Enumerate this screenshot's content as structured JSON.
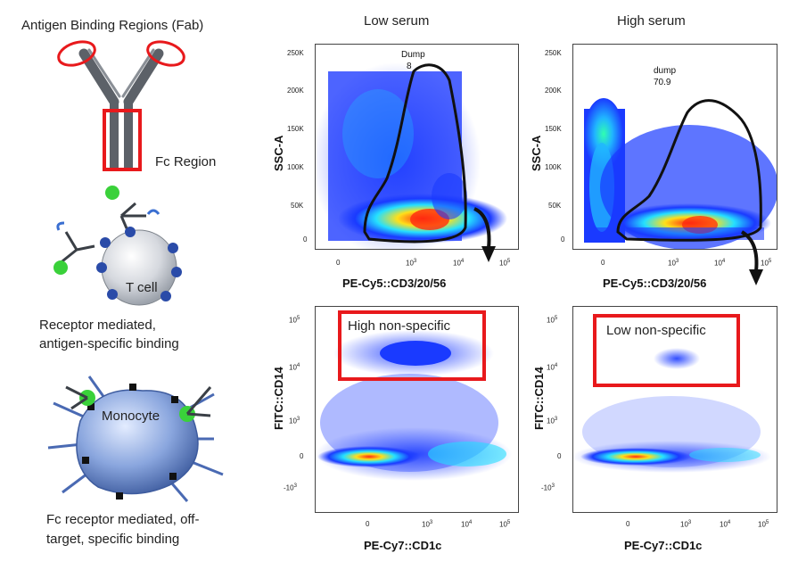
{
  "left_panel": {
    "fab_label": "Antigen Binding Regions (Fab)",
    "fc_label": "Fc Region",
    "tcell_label": "T cell",
    "tcell_caption_1": "Receptor mediated,",
    "tcell_caption_2": "antigen-specific binding",
    "monocyte_label": "Monocyte",
    "monocyte_caption_1": "Fc receptor mediated, off-",
    "monocyte_caption_2": "target, specific binding"
  },
  "columns": {
    "low": "Low serum",
    "high": "High serum"
  },
  "top_plots": {
    "ylabel": "SSC-A",
    "xlabel": "PE-Cy5::CD3/20/56",
    "y_ticks": [
      "250K",
      "200K",
      "150K",
      "100K",
      "50K",
      "0"
    ],
    "x_ticks": [
      "0",
      "10",
      "10",
      "10"
    ],
    "x_tick_exps": [
      "",
      "3",
      "4",
      "5"
    ],
    "low_gate_name": "Dump",
    "low_gate_value": "8",
    "high_gate_name": "dump",
    "high_gate_value": "70.9"
  },
  "bottom_plots": {
    "ylabel": "FITC::CD14",
    "xlabel": "PE-Cy7::CD1c",
    "y_ticks": [
      "10",
      "10",
      "10",
      "0",
      "-10"
    ],
    "y_tick_exps": [
      "5",
      "4",
      "3",
      "",
      "3"
    ],
    "x_ticks": [
      "0",
      "10",
      "10",
      "10"
    ],
    "x_tick_exps": [
      "",
      "3",
      "4",
      "5"
    ],
    "low_box_label": "High non-specific",
    "high_box_label": "Low non-specific"
  },
  "colors": {
    "gate_red": "#e8191c",
    "density_low": "#1a2cff",
    "density_mid": "#21d4ff",
    "density_high": "#ff3b1a",
    "antibody_gray": "#5c6168"
  }
}
